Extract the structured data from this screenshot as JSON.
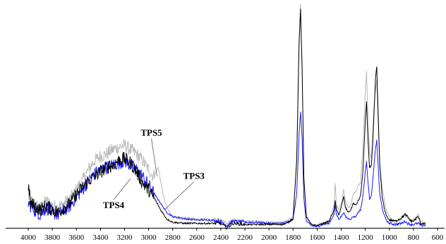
{
  "chart_data": {
    "type": "line",
    "title": "",
    "xlabel": "",
    "ylabel": "",
    "xlim": [
      4000,
      600
    ],
    "x_reversed": true,
    "x_ticks": [
      4000,
      3800,
      3600,
      3400,
      3200,
      3000,
      2800,
      2600,
      2400,
      2200,
      2000,
      1800,
      1600,
      1400,
      1200,
      1000,
      800,
      600
    ],
    "x_tick_labels": [
      "4000",
      "3800",
      "3600",
      "3400",
      "3200",
      "3000",
      "2800",
      "2600",
      "2400",
      "2200",
      "2000",
      "1800",
      "1600",
      "1400",
      "1200",
      "1000",
      "800",
      "600"
    ],
    "y_axis_visible": false,
    "ylim": [
      0,
      1
    ],
    "grid": false,
    "series": [
      {
        "name": "TPS5",
        "color": "#b8b8b8",
        "points": [
          [
            4000,
            0.14
          ],
          [
            3950,
            0.1
          ],
          [
            3900,
            0.09
          ],
          [
            3850,
            0.12
          ],
          [
            3800,
            0.1
          ],
          [
            3750,
            0.09
          ],
          [
            3700,
            0.11
          ],
          [
            3650,
            0.13
          ],
          [
            3600,
            0.17
          ],
          [
            3550,
            0.21
          ],
          [
            3500,
            0.26
          ],
          [
            3450,
            0.3
          ],
          [
            3400,
            0.32
          ],
          [
            3350,
            0.33
          ],
          [
            3300,
            0.35
          ],
          [
            3250,
            0.36
          ],
          [
            3200,
            0.37
          ],
          [
            3150,
            0.35
          ],
          [
            3100,
            0.33
          ],
          [
            3050,
            0.3
          ],
          [
            3000,
            0.26
          ],
          [
            2960,
            0.23
          ],
          [
            2920,
            0.27
          ],
          [
            2880,
            0.15
          ],
          [
            2850,
            0.09
          ],
          [
            2800,
            0.05
          ],
          [
            2700,
            0.045
          ],
          [
            2600,
            0.04
          ],
          [
            2500,
            0.04
          ],
          [
            2400,
            0.035
          ],
          [
            2350,
            0.02
          ],
          [
            2300,
            0.035
          ],
          [
            2200,
            0.03
          ],
          [
            2100,
            0.03
          ],
          [
            2000,
            0.025
          ],
          [
            1900,
            0.025
          ],
          [
            1850,
            0.03
          ],
          [
            1800,
            0.05
          ],
          [
            1770,
            0.3
          ],
          [
            1750,
            0.85
          ],
          [
            1738,
            1.0
          ],
          [
            1725,
            0.7
          ],
          [
            1710,
            0.22
          ],
          [
            1690,
            0.05
          ],
          [
            1650,
            0.015
          ],
          [
            1600,
            0.01
          ],
          [
            1550,
            0.02
          ],
          [
            1500,
            0.03
          ],
          [
            1460,
            0.1
          ],
          [
            1450,
            0.2
          ],
          [
            1440,
            0.1
          ],
          [
            1420,
            0.08
          ],
          [
            1400,
            0.11
          ],
          [
            1380,
            0.17
          ],
          [
            1365,
            0.12
          ],
          [
            1340,
            0.09
          ],
          [
            1320,
            0.1
          ],
          [
            1300,
            0.15
          ],
          [
            1280,
            0.16
          ],
          [
            1260,
            0.19
          ],
          [
            1240,
            0.2
          ],
          [
            1220,
            0.37
          ],
          [
            1200,
            0.6
          ],
          [
            1190,
            0.7
          ],
          [
            1180,
            0.53
          ],
          [
            1165,
            0.34
          ],
          [
            1150,
            0.31
          ],
          [
            1140,
            0.4
          ],
          [
            1130,
            0.52
          ],
          [
            1115,
            0.62
          ],
          [
            1105,
            0.66
          ],
          [
            1095,
            0.49
          ],
          [
            1080,
            0.29
          ],
          [
            1060,
            0.18
          ],
          [
            1040,
            0.12
          ],
          [
            1020,
            0.07
          ],
          [
            1000,
            0.05
          ],
          [
            950,
            0.025
          ],
          [
            900,
            0.04
          ],
          [
            870,
            0.06
          ],
          [
            850,
            0.045
          ],
          [
            820,
            0.03
          ],
          [
            800,
            0.035
          ],
          [
            760,
            0.06
          ],
          [
            740,
            0.025
          ],
          [
            720,
            0.025
          ],
          [
            700,
            0.02
          ]
        ]
      },
      {
        "name": "TPS3",
        "color": "#1a1aff",
        "points": [
          [
            4000,
            0.11
          ],
          [
            3950,
            0.08
          ],
          [
            3900,
            0.06
          ],
          [
            3850,
            0.09
          ],
          [
            3800,
            0.07
          ],
          [
            3750,
            0.06
          ],
          [
            3700,
            0.08
          ],
          [
            3650,
            0.1
          ],
          [
            3600,
            0.14
          ],
          [
            3550,
            0.17
          ],
          [
            3500,
            0.21
          ],
          [
            3450,
            0.24
          ],
          [
            3400,
            0.26
          ],
          [
            3350,
            0.27
          ],
          [
            3300,
            0.28
          ],
          [
            3250,
            0.29
          ],
          [
            3200,
            0.3
          ],
          [
            3150,
            0.28
          ],
          [
            3100,
            0.26
          ],
          [
            3050,
            0.23
          ],
          [
            3000,
            0.19
          ],
          [
            2950,
            0.15
          ],
          [
            2900,
            0.11
          ],
          [
            2850,
            0.07
          ],
          [
            2800,
            0.05
          ],
          [
            2700,
            0.04
          ],
          [
            2600,
            0.035
          ],
          [
            2500,
            0.035
          ],
          [
            2400,
            0.03
          ],
          [
            2350,
            0.01
          ],
          [
            2300,
            0.03
          ],
          [
            2200,
            0.025
          ],
          [
            2100,
            0.025
          ],
          [
            2000,
            0.02
          ],
          [
            1900,
            0.02
          ],
          [
            1850,
            0.025
          ],
          [
            1800,
            0.04
          ],
          [
            1770,
            0.15
          ],
          [
            1750,
            0.42
          ],
          [
            1738,
            0.52
          ],
          [
            1725,
            0.4
          ],
          [
            1710,
            0.13
          ],
          [
            1690,
            0.03
          ],
          [
            1650,
            0.01
          ],
          [
            1600,
            0.005
          ],
          [
            1550,
            0.015
          ],
          [
            1500,
            0.02
          ],
          [
            1460,
            0.06
          ],
          [
            1450,
            0.1
          ],
          [
            1440,
            0.06
          ],
          [
            1420,
            0.04
          ],
          [
            1400,
            0.05
          ],
          [
            1380,
            0.07
          ],
          [
            1365,
            0.05
          ],
          [
            1340,
            0.04
          ],
          [
            1320,
            0.04
          ],
          [
            1300,
            0.05
          ],
          [
            1280,
            0.05
          ],
          [
            1260,
            0.07
          ],
          [
            1240,
            0.08
          ],
          [
            1220,
            0.14
          ],
          [
            1200,
            0.25
          ],
          [
            1190,
            0.3
          ],
          [
            1180,
            0.22
          ],
          [
            1165,
            0.13
          ],
          [
            1150,
            0.14
          ],
          [
            1140,
            0.2
          ],
          [
            1130,
            0.26
          ],
          [
            1115,
            0.36
          ],
          [
            1105,
            0.39
          ],
          [
            1095,
            0.29
          ],
          [
            1080,
            0.15
          ],
          [
            1060,
            0.09
          ],
          [
            1040,
            0.05
          ],
          [
            1020,
            0.03
          ],
          [
            1000,
            0.02
          ],
          [
            950,
            0.015
          ],
          [
            900,
            0.02
          ],
          [
            870,
            0.03
          ],
          [
            850,
            0.02
          ],
          [
            820,
            0.015
          ],
          [
            800,
            0.015
          ],
          [
            760,
            0.02
          ],
          [
            740,
            0.01
          ],
          [
            720,
            0.01
          ],
          [
            700,
            0.01
          ]
        ]
      },
      {
        "name": "TPS4",
        "color": "#000000",
        "points": [
          [
            4000,
            0.19
          ],
          [
            3980,
            0.11
          ],
          [
            3950,
            0.1
          ],
          [
            3900,
            0.08
          ],
          [
            3850,
            0.1
          ],
          [
            3800,
            0.08
          ],
          [
            3750,
            0.07
          ],
          [
            3700,
            0.09
          ],
          [
            3650,
            0.11
          ],
          [
            3600,
            0.15
          ],
          [
            3550,
            0.18
          ],
          [
            3500,
            0.21
          ],
          [
            3450,
            0.23
          ],
          [
            3400,
            0.25
          ],
          [
            3350,
            0.27
          ],
          [
            3300,
            0.28
          ],
          [
            3250,
            0.3
          ],
          [
            3200,
            0.31
          ],
          [
            3150,
            0.29
          ],
          [
            3100,
            0.25
          ],
          [
            3050,
            0.2
          ],
          [
            3000,
            0.17
          ],
          [
            2950,
            0.13
          ],
          [
            2900,
            0.08
          ],
          [
            2850,
            0.04
          ],
          [
            2800,
            0.025
          ],
          [
            2700,
            0.02
          ],
          [
            2600,
            0.02
          ],
          [
            2500,
            0.02
          ],
          [
            2400,
            0.02
          ],
          [
            2350,
            0.0
          ],
          [
            2300,
            0.02
          ],
          [
            2200,
            0.015
          ],
          [
            2100,
            0.015
          ],
          [
            2000,
            0.015
          ],
          [
            1900,
            0.015
          ],
          [
            1850,
            0.02
          ],
          [
            1800,
            0.04
          ],
          [
            1770,
            0.3
          ],
          [
            1750,
            0.82
          ],
          [
            1738,
            0.98
          ],
          [
            1725,
            0.72
          ],
          [
            1710,
            0.22
          ],
          [
            1690,
            0.05
          ],
          [
            1650,
            0.015
          ],
          [
            1600,
            0.01
          ],
          [
            1550,
            0.02
          ],
          [
            1500,
            0.03
          ],
          [
            1460,
            0.08
          ],
          [
            1450,
            0.12
          ],
          [
            1440,
            0.08
          ],
          [
            1420,
            0.06
          ],
          [
            1400,
            0.09
          ],
          [
            1380,
            0.14
          ],
          [
            1365,
            0.09
          ],
          [
            1340,
            0.07
          ],
          [
            1320,
            0.08
          ],
          [
            1300,
            0.11
          ],
          [
            1280,
            0.1
          ],
          [
            1260,
            0.12
          ],
          [
            1240,
            0.14
          ],
          [
            1220,
            0.25
          ],
          [
            1200,
            0.48
          ],
          [
            1190,
            0.56
          ],
          [
            1180,
            0.42
          ],
          [
            1165,
            0.27
          ],
          [
            1150,
            0.28
          ],
          [
            1140,
            0.36
          ],
          [
            1130,
            0.48
          ],
          [
            1115,
            0.67
          ],
          [
            1105,
            0.72
          ],
          [
            1095,
            0.54
          ],
          [
            1080,
            0.28
          ],
          [
            1060,
            0.14
          ],
          [
            1040,
            0.08
          ],
          [
            1020,
            0.05
          ],
          [
            1000,
            0.035
          ],
          [
            950,
            0.03
          ],
          [
            900,
            0.045
          ],
          [
            870,
            0.06
          ],
          [
            850,
            0.05
          ],
          [
            820,
            0.03
          ],
          [
            800,
            0.03
          ],
          [
            760,
            0.05
          ],
          [
            740,
            0.02
          ],
          [
            720,
            0.02
          ],
          [
            700,
            0.015
          ]
        ]
      }
    ],
    "annotations": [
      {
        "text": "TPS5",
        "series": "TPS5",
        "anchor_x": 2930,
        "anchor_y": 0.23
      },
      {
        "text": "TPS3",
        "series": "TPS3",
        "anchor_x": 2870,
        "anchor_y": 0.08
      },
      {
        "text": "TPS4",
        "series": "TPS4",
        "anchor_x": 3150,
        "anchor_y": 0.22
      }
    ]
  }
}
